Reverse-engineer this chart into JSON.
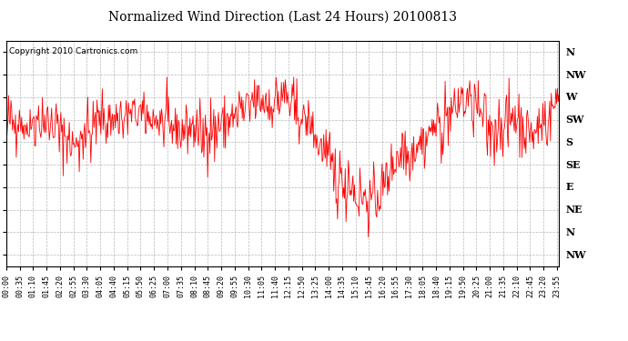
{
  "title": "Normalized Wind Direction (Last 24 Hours) 20100813",
  "copyright_text": "Copyright 2010 Cartronics.com",
  "line_color": "#ff0000",
  "background_color": "#ffffff",
  "grid_color": "#999999",
  "y_tick_labels": [
    "N",
    "NW",
    "W",
    "SW",
    "S",
    "SE",
    "E",
    "NE",
    "N",
    "NW"
  ],
  "y_tick_values": [
    360,
    315,
    270,
    225,
    180,
    135,
    90,
    45,
    0,
    -45
  ],
  "y_min": -67.5,
  "y_max": 382.5,
  "x_tick_labels": [
    "00:00",
    "00:35",
    "01:10",
    "01:45",
    "02:20",
    "02:55",
    "03:30",
    "04:05",
    "04:40",
    "05:15",
    "05:50",
    "06:25",
    "07:00",
    "07:35",
    "08:10",
    "08:45",
    "09:20",
    "09:55",
    "10:30",
    "11:05",
    "11:40",
    "12:15",
    "12:50",
    "13:25",
    "14:00",
    "14:35",
    "15:10",
    "15:45",
    "16:20",
    "16:55",
    "17:30",
    "18:05",
    "18:40",
    "19:15",
    "19:50",
    "20:25",
    "21:00",
    "21:35",
    "22:10",
    "22:45",
    "23:20",
    "23:55"
  ],
  "title_fontsize": 10,
  "copyright_fontsize": 6.5,
  "ytick_fontsize": 8,
  "xtick_fontsize": 6,
  "seed": 42,
  "base_trend_t": [
    0,
    60,
    120,
    180,
    240,
    360,
    420,
    480,
    570,
    630,
    720,
    780,
    870,
    960,
    1020,
    1080,
    1140,
    1200,
    1260,
    1320,
    1380,
    1440
  ],
  "base_trend_vals": [
    225,
    220,
    215,
    170,
    225,
    225,
    215,
    200,
    210,
    250,
    270,
    220,
    100,
    60,
    150,
    180,
    220,
    270,
    210,
    225,
    190,
    265
  ]
}
